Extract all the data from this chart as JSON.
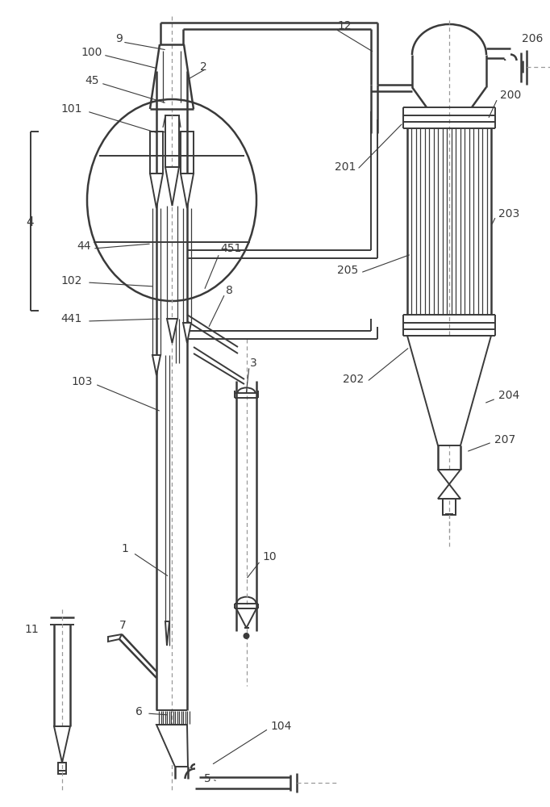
{
  "bg_color": "#ffffff",
  "line_color": "#3a3a3a",
  "lw": 1.4,
  "lw2": 1.8,
  "lw3": 0.9,
  "label_fs": 9.5
}
